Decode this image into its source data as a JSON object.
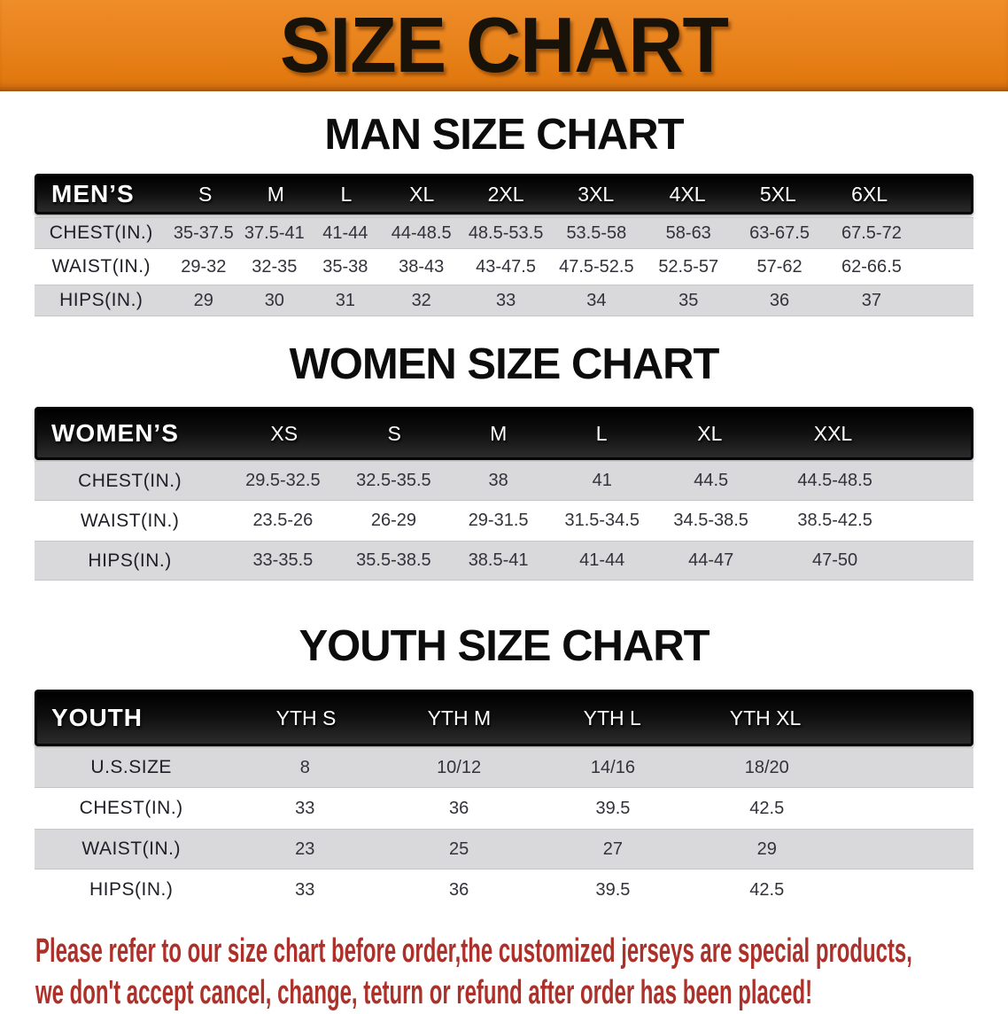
{
  "banner": {
    "title": "SIZE CHART"
  },
  "sections": [
    {
      "heading": "MAN SIZE CHART",
      "header_label": "MEN’S",
      "columns": [
        "S",
        "M",
        "L",
        "XL",
        "2XL",
        "3XL",
        "4XL",
        "5XL",
        "6XL"
      ],
      "rows": [
        {
          "label": "CHEST(IN.)",
          "values": [
            "35-37.5",
            "37.5-41",
            "41-44",
            "44-48.5",
            "48.5-53.5",
            "53.5-58",
            "58-63",
            "63-67.5",
            "67.5-72"
          ]
        },
        {
          "label": "WAIST(IN.)",
          "values": [
            "29-32",
            "32-35",
            "35-38",
            "38-43",
            "43-47.5",
            "47.5-52.5",
            "52.5-57",
            "57-62",
            "62-66.5"
          ]
        },
        {
          "label": "HIPS(IN.)",
          "values": [
            "29",
            "30",
            "31",
            "32",
            "33",
            "34",
            "35",
            "36",
            "37"
          ]
        }
      ]
    },
    {
      "heading": "WOMEN SIZE CHART",
      "header_label": "WOMEN’S",
      "columns": [
        "XS",
        "S",
        "M",
        "L",
        "XL",
        "XXL"
      ],
      "rows": [
        {
          "label": "CHEST(IN.)",
          "values": [
            "29.5-32.5",
            "32.5-35.5",
            "38",
            "41",
            "44.5",
            "44.5-48.5"
          ]
        },
        {
          "label": "WAIST(IN.)",
          "values": [
            "23.5-26",
            "26-29",
            "29-31.5",
            "31.5-34.5",
            "34.5-38.5",
            "38.5-42.5"
          ]
        },
        {
          "label": "HIPS(IN.)",
          "values": [
            "33-35.5",
            "35.5-38.5",
            "38.5-41",
            "41-44",
            "44-47",
            "47-50"
          ]
        }
      ]
    },
    {
      "heading": "YOUTH SIZE CHART",
      "header_label": "YOUTH",
      "columns": [
        "YTH S",
        "YTH M",
        "YTH L",
        "YTH XL"
      ],
      "rows": [
        {
          "label": "U.S.SIZE",
          "values": [
            "8",
            "10/12",
            "14/16",
            "18/20"
          ]
        },
        {
          "label": "CHEST(IN.)",
          "values": [
            "33",
            "36",
            "39.5",
            "42.5"
          ]
        },
        {
          "label": "WAIST(IN.)",
          "values": [
            "23",
            "25",
            "27",
            "29"
          ]
        },
        {
          "label": "HIPS(IN.)",
          "values": [
            "33",
            "36",
            "39.5",
            "42.5"
          ]
        }
      ]
    }
  ],
  "disclaimer": {
    "line1": "Please refer to our size chart before order,the customized jerseys are special products,",
    "line2": "we don't accept cancel, change, teturn or refund after order has been placed!"
  },
  "colors": {
    "banner_bg": "#e8821b",
    "header_bg": "#141414",
    "row_alt": "#d9d9db",
    "disclaimer_text": "#ab312a"
  }
}
